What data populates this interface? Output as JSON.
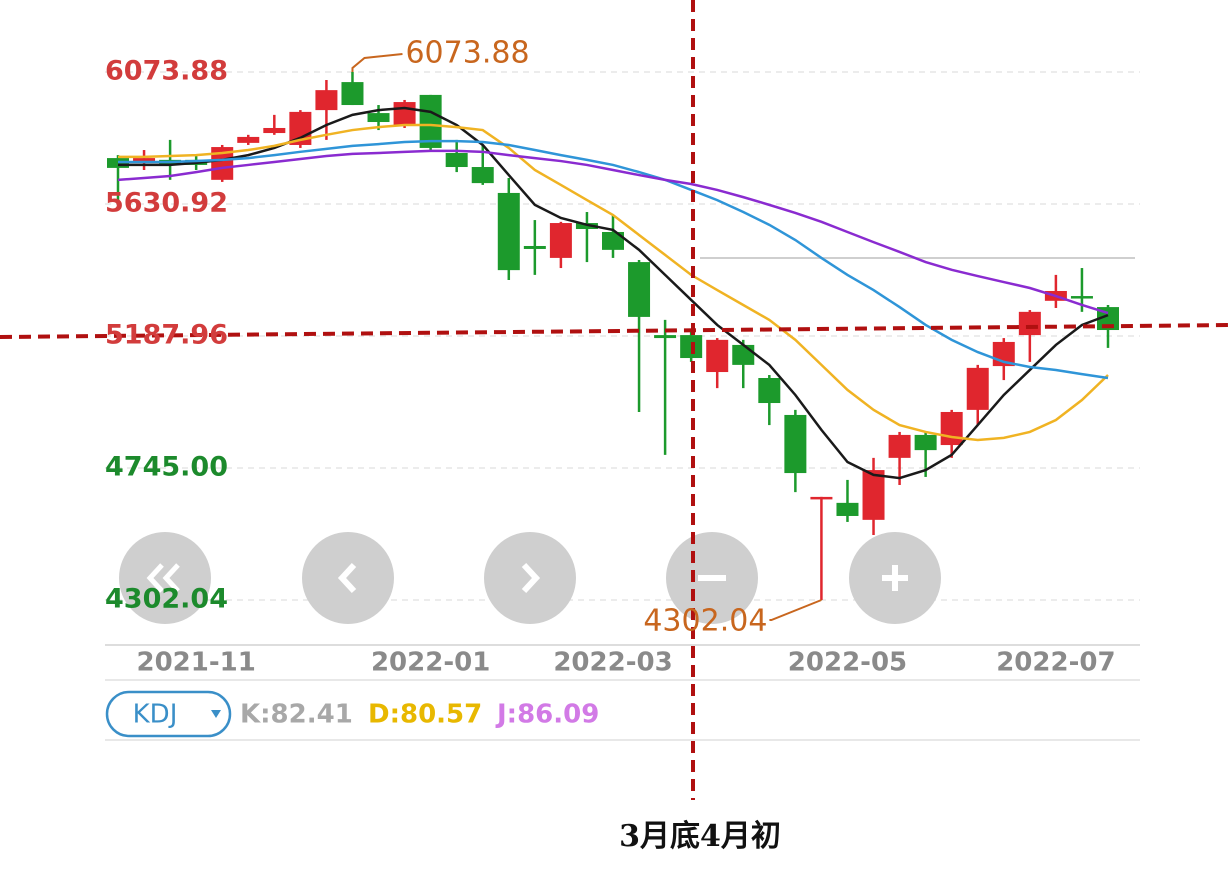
{
  "chart_data": {
    "type": "candlestick",
    "categories": [
      null,
      null,
      null,
      "2021-11",
      null,
      null,
      null,
      null,
      null,
      null,
      null,
      null,
      "2022-01",
      null,
      null,
      null,
      null,
      null,
      null,
      "2022-03",
      null,
      null,
      null,
      null,
      null,
      null,
      null,
      null,
      "2022-05",
      null,
      null,
      null,
      null,
      null,
      null,
      null,
      "2022-07",
      null,
      null
    ],
    "open": [
      5785,
      5772,
      5779,
      5779,
      5712,
      5836,
      5869,
      5829,
      5946,
      6040,
      5936,
      5896,
      5997,
      5802,
      5755,
      5668,
      5490,
      5450,
      5567,
      5537,
      5436,
      5191,
      5191,
      5067,
      5158,
      5047,
      4923,
      4641,
      4628,
      4571,
      4779,
      4856,
      4822,
      4940,
      5087,
      5191,
      5306,
      5322,
      5285
    ],
    "high": [
      5795,
      5812,
      5846,
      5795,
      5829,
      5863,
      5930,
      5946,
      6047,
      6073.88,
      5963,
      5980,
      5997,
      5846,
      5829,
      5718,
      5577,
      5571,
      5604,
      5594,
      5443,
      5242,
      5208,
      5181,
      5175,
      5057,
      4940,
      4648,
      4705,
      4779,
      4866,
      4866,
      4940,
      5091,
      5181,
      5275,
      5393,
      5416,
      5292
    ],
    "low": [
      5628,
      5745,
      5712,
      5745,
      5705,
      5829,
      5863,
      5819,
      5846,
      5963,
      5879,
      5886,
      5812,
      5738,
      5695,
      5376,
      5393,
      5416,
      5436,
      5450,
      4933,
      4789,
      5101,
      5013,
      5013,
      4889,
      4664,
      4302.04,
      4564,
      4520,
      4688,
      4715,
      4779,
      4889,
      5040,
      5101,
      5282,
      5269,
      5148
    ],
    "close": [
      5752,
      5785,
      5762,
      5762,
      5822,
      5856,
      5886,
      5940,
      6013,
      5963,
      5906,
      5973,
      5819,
      5755,
      5701,
      5409,
      5480,
      5567,
      5547,
      5477,
      5252,
      5181,
      5114,
      5175,
      5091,
      4963,
      4728,
      4648,
      4584,
      4738,
      4856,
      4805,
      4933,
      5081,
      5168,
      5269,
      5339,
      5316,
      5208
    ],
    "up_color": "#e0262e",
    "down_color": "#1c9a2c",
    "lines": [
      {
        "color": "#1a1a1a",
        "values": [
          5762,
          5762,
          5762,
          5769,
          5779,
          5795,
          5819,
          5853,
          5896,
          5930,
          5946,
          5953,
          5940,
          5896,
          5829,
          5728,
          5628,
          5584,
          5561,
          5544,
          5477,
          5393,
          5309,
          5225,
          5158,
          5091,
          4990,
          4873,
          4765,
          4722,
          4711,
          4738,
          4789,
          4889,
          4990,
          5074,
          5158,
          5225,
          5258
        ]
      },
      {
        "color": "#f0b323",
        "values": [
          5789,
          5789,
          5792,
          5795,
          5802,
          5812,
          5826,
          5846,
          5863,
          5879,
          5889,
          5896,
          5896,
          5889,
          5879,
          5819,
          5745,
          5695,
          5644,
          5594,
          5527,
          5460,
          5393,
          5342,
          5292,
          5242,
          5175,
          5091,
          5007,
          4940,
          4889,
          4866,
          4849,
          4839,
          4846,
          4866,
          4906,
          4973,
          5057
        ]
      },
      {
        "color": "#2f95d8",
        "values": [
          5772,
          5772,
          5772,
          5775,
          5779,
          5785,
          5795,
          5806,
          5816,
          5826,
          5832,
          5839,
          5842,
          5842,
          5839,
          5829,
          5812,
          5795,
          5779,
          5762,
          5738,
          5712,
          5678,
          5644,
          5604,
          5561,
          5510,
          5450,
          5393,
          5342,
          5285,
          5225,
          5175,
          5134,
          5101,
          5084,
          5074,
          5060,
          5047
        ]
      },
      {
        "color": "#8a2bd0",
        "values": [
          5712,
          5718,
          5725,
          5738,
          5752,
          5762,
          5772,
          5782,
          5792,
          5799,
          5802,
          5806,
          5809,
          5809,
          5806,
          5795,
          5785,
          5775,
          5762,
          5745,
          5728,
          5712,
          5698,
          5678,
          5654,
          5628,
          5601,
          5571,
          5537,
          5503,
          5470,
          5436,
          5410,
          5389,
          5369,
          5349,
          5322,
          5292,
          5265
        ]
      }
    ],
    "ylim": [
      4167.8,
      6214.8
    ],
    "yticks": [
      6073.88,
      5630.92,
      5187.96,
      {
        "value": 4745,
        "label": "4745.00"
      },
      4302.04
    ],
    "ytick_colors": [
      "#d23c3c",
      "#d23c3c",
      "#d23c3c",
      "#1c8a2c",
      "#1c8a2c"
    ],
    "grid": true,
    "annotation_color": "#c8661e",
    "indicator": {
      "selector": "KDJ",
      "items": [
        {
          "text": "K:82.41",
          "color": "#a8a8a8"
        },
        {
          "text": "D:80.57",
          "color": "#e8b800"
        },
        {
          "text": "J:86.09",
          "color": "#d27ae6"
        }
      ]
    },
    "caption": "3月底4月初"
  }
}
